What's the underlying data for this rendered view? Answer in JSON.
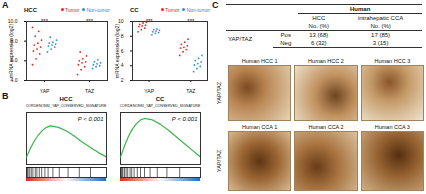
{
  "panel_labels": [
    "A",
    "B",
    "C"
  ],
  "chart_data": [
    {
      "type": "scatter",
      "title": "HCC",
      "y_label": "mRNA expression (log2)",
      "categories": [
        "YAP",
        "TAZ"
      ],
      "series": [
        {
          "name": "Tumor",
          "color": "#e8281e",
          "values": [
            [
              5.6,
              6.2,
              6.7,
              7.0,
              7.2,
              7.4,
              7.6,
              7.8,
              8.1,
              8.5,
              9.0,
              9.4
            ],
            [
              4.6,
              5.1,
              5.4,
              5.6,
              5.8,
              5.9,
              6.0,
              6.2,
              6.5,
              6.9
            ]
          ]
        },
        {
          "name": "Non-tumor",
          "color": "#2b8fd8",
          "values": [
            [
              6.9,
              7.2,
              7.4,
              7.5,
              7.6,
              7.7,
              7.8,
              7.9,
              8.1,
              8.4
            ],
            [
              5.2,
              5.4,
              5.5,
              5.6,
              5.7,
              5.8,
              5.9,
              6.1
            ]
          ]
        }
      ],
      "ylim": [
        4,
        10
      ],
      "yticks": [
        4,
        6,
        8,
        10
      ],
      "annotations": [
        "***",
        "***"
      ],
      "legend": "top-right"
    },
    {
      "type": "scatter",
      "title": "CC",
      "y_label": "mRNA expression (log2)",
      "categories": [
        "YAP",
        "TAZ"
      ],
      "series": [
        {
          "name": "Tumor",
          "color": "#e8281e",
          "values": [
            [
              8.6,
              8.9,
              9.1,
              9.3,
              9.4,
              9.5,
              9.6,
              9.8,
              9.9
            ],
            [
              5.4,
              5.9,
              6.2,
              6.4,
              6.5,
              6.7,
              6.9,
              7.2,
              7.6
            ]
          ]
        },
        {
          "name": "Non-tumor",
          "color": "#2b8fd8",
          "values": [
            [
              8.2,
              8.4,
              8.5,
              8.6,
              8.7,
              8.8,
              8.9,
              9.0
            ],
            [
              3.2,
              3.6,
              3.9,
              4.1,
              4.3,
              4.5,
              4.7,
              5.0,
              5.4
            ]
          ]
        }
      ],
      "ylim": [
        2,
        10
      ],
      "yticks": [
        2,
        4,
        6,
        8,
        10
      ],
      "annotations": [
        "***",
        "***"
      ],
      "legend": "top-right"
    },
    {
      "type": "line",
      "title": "HCC",
      "subtitle": "CORDENONSI_YAP_CONSERVED_SIGNATURE",
      "annotation": "P < 0.001",
      "x": [
        0,
        5,
        10,
        15,
        20,
        25,
        30,
        40,
        50,
        60,
        70,
        80,
        90,
        100
      ],
      "values": [
        0,
        0.12,
        0.22,
        0.3,
        0.36,
        0.4,
        0.42,
        0.4,
        0.35,
        0.28,
        0.2,
        0.13,
        0.06,
        0
      ],
      "hits": [
        1,
        2,
        4,
        6,
        8,
        11,
        13,
        16,
        19,
        23,
        27,
        33,
        41,
        52,
        66,
        80
      ],
      "color": "#3cb44b",
      "xlim": [
        0,
        100
      ],
      "ylim": [
        -0.1,
        0.6
      ],
      "tick_labels": false
    },
    {
      "type": "line",
      "title": "CC",
      "subtitle": "CORDENONSI_YAP_CONSERVED_SIGNATURE",
      "annotation": "P < 0.001",
      "x": [
        0,
        5,
        10,
        15,
        20,
        25,
        30,
        40,
        50,
        60,
        70,
        80,
        90,
        100
      ],
      "values": [
        0,
        0.15,
        0.28,
        0.38,
        0.45,
        0.5,
        0.52,
        0.5,
        0.44,
        0.36,
        0.27,
        0.18,
        0.09,
        0
      ],
      "hits": [
        1,
        2,
        3,
        5,
        7,
        9,
        12,
        14,
        17,
        21,
        25,
        30,
        37,
        46,
        58,
        74
      ],
      "color": "#3cb44b",
      "xlim": [
        0,
        100
      ],
      "ylim": [
        -0.1,
        0.6
      ],
      "tick_labels": false
    }
  ],
  "table": {
    "title": "Human",
    "row_group": "YAP/TAZ",
    "columns": [
      "HCC",
      "intrahepatic CCA"
    ],
    "units": [
      "No. (%)",
      "No. (%)"
    ],
    "rows": [
      {
        "label": "Pos",
        "cells": [
          "13 (68)",
          "17 (85)"
        ]
      },
      {
        "label": "Neg",
        "cells": [
          "6 (32)",
          "3 (15)"
        ]
      }
    ]
  },
  "images": {
    "row_label": "YAP/TAZ",
    "rows": [
      [
        "Human HCC 1",
        "Human HCC 2",
        "Human HCC 3"
      ],
      [
        "Human CCA 1",
        "Human CCA 2",
        "Human CCA 3"
      ]
    ]
  }
}
